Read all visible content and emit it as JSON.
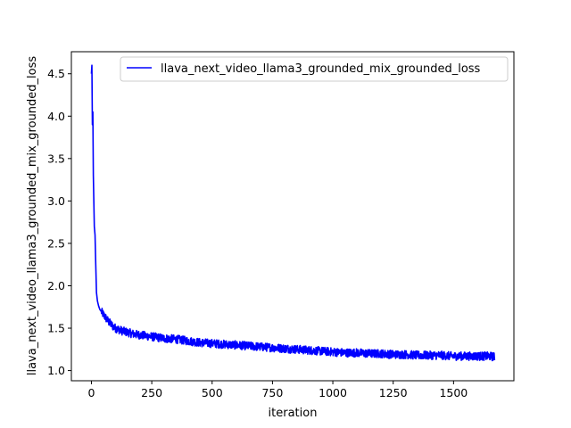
{
  "chart_data": {
    "type": "line",
    "title": "",
    "xlabel": "iteration",
    "ylabel": "llava_next_video_llama3_grounded_mix_grounded_loss",
    "xlim": [
      -83,
      1750
    ],
    "ylim": [
      0.88,
      4.76
    ],
    "xticks": [
      0,
      250,
      500,
      750,
      1000,
      1250,
      1500
    ],
    "yticks": [
      1.0,
      1.5,
      2.0,
      2.5,
      3.0,
      3.5,
      4.0,
      4.5
    ],
    "xtick_labels": [
      "0",
      "250",
      "500",
      "750",
      "1000",
      "1250",
      "1500"
    ],
    "ytick_labels": [
      "1.0",
      "1.5",
      "2.0",
      "2.5",
      "3.0",
      "3.5",
      "4.0",
      "4.5"
    ],
    "grid": false,
    "legend": {
      "placement": "top-right",
      "entries": [
        {
          "label": "llava_next_video_llama3_grounded_mix_grounded_loss",
          "color": "#0000ff"
        }
      ]
    },
    "series": [
      {
        "name": "llava_next_video_llama3_grounded_mix_grounded_loss",
        "color": "#0000ff",
        "x": [
          0,
          2,
          4,
          6,
          8,
          10,
          12,
          15,
          18,
          21,
          25,
          30,
          35,
          40,
          50,
          60,
          70,
          80,
          90,
          100,
          125,
          150,
          175,
          200,
          250,
          300,
          350,
          400,
          450,
          500,
          550,
          600,
          650,
          700,
          750,
          800,
          850,
          900,
          950,
          1000,
          1050,
          1100,
          1150,
          1200,
          1250,
          1300,
          1350,
          1400,
          1450,
          1500,
          1550,
          1600,
          1650,
          1670
        ],
        "y": [
          4.5,
          4.6,
          3.9,
          4.05,
          3.3,
          3.0,
          2.7,
          2.6,
          2.25,
          1.92,
          1.82,
          1.76,
          1.72,
          1.7,
          1.66,
          1.62,
          1.58,
          1.55,
          1.52,
          1.5,
          1.47,
          1.45,
          1.43,
          1.42,
          1.4,
          1.38,
          1.37,
          1.35,
          1.33,
          1.32,
          1.31,
          1.3,
          1.29,
          1.28,
          1.27,
          1.26,
          1.25,
          1.24,
          1.23,
          1.22,
          1.21,
          1.21,
          1.2,
          1.2,
          1.19,
          1.19,
          1.18,
          1.18,
          1.18,
          1.17,
          1.17,
          1.17,
          1.17,
          1.16
        ],
        "noise": 0.05,
        "noise_start": 40
      }
    ]
  }
}
